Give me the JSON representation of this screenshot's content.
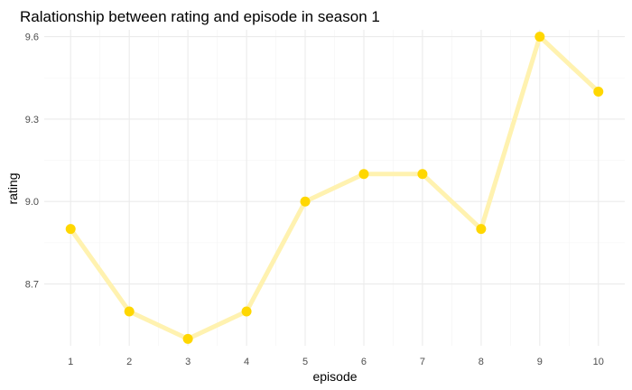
{
  "chart_data": {
    "type": "line",
    "title": "Ralationship between rating and episode in season 1",
    "xlabel": "episode",
    "ylabel": "rating",
    "x": [
      1,
      2,
      3,
      4,
      5,
      6,
      7,
      8,
      9,
      10
    ],
    "series": [
      {
        "values": [
          8.9,
          8.6,
          8.5,
          8.6,
          9.0,
          9.1,
          9.1,
          8.9,
          9.6,
          9.4
        ]
      }
    ],
    "x_ticks": [
      "1",
      "2",
      "3",
      "4",
      "5",
      "6",
      "7",
      "8",
      "9",
      "10"
    ],
    "y_ticks": [
      "8.7",
      "9.0",
      "9.3",
      "9.6"
    ],
    "y_tick_values": [
      8.7,
      9.0,
      9.3,
      9.6
    ],
    "xlim": [
      0.55,
      10.45
    ],
    "ylim": [
      8.475,
      9.625
    ],
    "grid": true,
    "legend": "none",
    "colors": {
      "line": "#FFF2B0",
      "point": "#FFD700",
      "grid_major": "#EBEBEB",
      "grid_minor": "#F4F4F4",
      "tick_text": "#4D4D4D"
    }
  }
}
